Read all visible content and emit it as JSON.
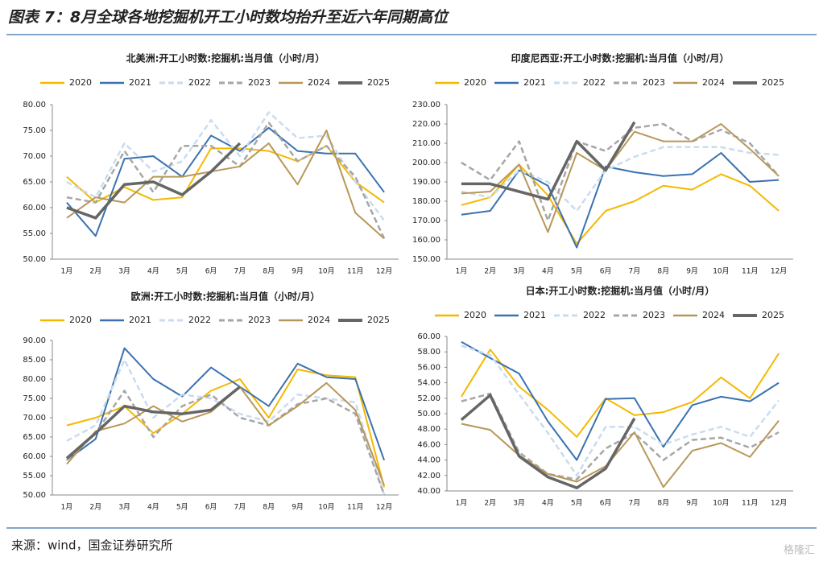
{
  "header": {
    "title": "图表 7：8月全球各地挖掘机开工小时数均抬升至近六年同期高位"
  },
  "footer": {
    "source": "来源：wind，国金证券研究所",
    "watermark": "格隆汇"
  },
  "chart_data": [
    {
      "type": "line",
      "title": "北美洲:开工小时数:挖掘机:当月值（小时/月）",
      "categories": [
        "1月",
        "2月",
        "3月",
        "4月",
        "5月",
        "6月",
        "7月",
        "8月",
        "9月",
        "10月",
        "11月",
        "12月"
      ],
      "ylim": [
        50,
        80
      ],
      "yticks": [
        {
          "value": 50,
          "label": "50.00"
        },
        {
          "value": 55,
          "label": "55.00"
        },
        {
          "value": 60,
          "label": "60.00"
        },
        {
          "value": 65,
          "label": "65.00"
        },
        {
          "value": 70,
          "label": "70.00"
        },
        {
          "value": 75,
          "label": "75.00"
        },
        {
          "value": 80,
          "label": "80.00"
        }
      ],
      "series": [
        {
          "name": "2020",
          "color": "#f5b800",
          "line_style": "solid",
          "values": [
            66,
            61,
            64,
            61.5,
            62,
            71.5,
            71.5,
            71,
            69,
            72,
            65,
            61
          ]
        },
        {
          "name": "2021",
          "color": "#3a72b0",
          "line_style": "solid",
          "values": [
            61,
            54.5,
            69.5,
            70,
            66,
            74,
            71,
            75.5,
            71,
            70.5,
            70.5,
            63
          ]
        },
        {
          "name": "2022",
          "color": "#c9dcef",
          "line_style": "dashed",
          "values": [
            65,
            62,
            72.5,
            67,
            69,
            77,
            70,
            78.5,
            73.5,
            74,
            65,
            57.5
          ]
        },
        {
          "name": "2023",
          "color": "#a6a6a6",
          "line_style": "dashed",
          "values": [
            62,
            61,
            71,
            63,
            72,
            72,
            68,
            76.5,
            69,
            72,
            66,
            54
          ]
        },
        {
          "name": "2024",
          "color": "#b8975a",
          "line_style": "solid",
          "values": [
            58,
            62,
            61,
            66,
            66,
            67,
            68,
            72.5,
            64.5,
            75,
            59,
            54
          ]
        },
        {
          "name": "2025",
          "color": "#666666",
          "line_style": "bold",
          "values": [
            60,
            58,
            64.5,
            65,
            62.5,
            67,
            72.5,
            null,
            null,
            null,
            null,
            null
          ]
        }
      ]
    },
    {
      "type": "line",
      "title": "印度尼西亚:开工小时数:挖掘机:当月值（小时/月）",
      "categories": [
        "1月",
        "2月",
        "3月",
        "4月",
        "5月",
        "6月",
        "7月",
        "8月",
        "9月",
        "10月",
        "11月",
        "12月"
      ],
      "ylim": [
        150,
        230
      ],
      "yticks": [
        {
          "value": 150,
          "label": "150.00"
        },
        {
          "value": 160,
          "label": "160.00"
        },
        {
          "value": 170,
          "label": "170.00"
        },
        {
          "value": 180,
          "label": "180.00"
        },
        {
          "value": 190,
          "label": "190.00"
        },
        {
          "value": 200,
          "label": "200.00"
        },
        {
          "value": 210,
          "label": "210.00"
        },
        {
          "value": 220,
          "label": "220.00"
        },
        {
          "value": 230,
          "label": "230.00"
        }
      ],
      "series": [
        {
          "name": "2020",
          "color": "#f5b800",
          "line_style": "solid",
          "values": [
            178,
            182,
            199,
            183,
            158,
            175,
            180,
            188,
            186,
            194,
            188,
            175
          ]
        },
        {
          "name": "2021",
          "color": "#3a72b0",
          "line_style": "solid",
          "values": [
            173,
            175,
            196,
            188,
            156,
            198,
            195,
            193,
            194,
            205,
            190,
            191
          ]
        },
        {
          "name": "2022",
          "color": "#c9dcef",
          "line_style": "dashed",
          "values": [
            185,
            182,
            196,
            190,
            175,
            196,
            203,
            208,
            208,
            208,
            205,
            204
          ]
        },
        {
          "name": "2023",
          "color": "#a6a6a6",
          "line_style": "dashed",
          "values": [
            200,
            191,
            211,
            170,
            211,
            206,
            218,
            220,
            211,
            217,
            210,
            193
          ]
        },
        {
          "name": "2024",
          "color": "#b8975a",
          "line_style": "solid",
          "values": [
            184,
            185,
            199,
            164,
            205,
            196,
            216,
            211,
            211,
            220,
            207,
            193
          ]
        },
        {
          "name": "2025",
          "color": "#666666",
          "line_style": "bold",
          "values": [
            189,
            189,
            185,
            181,
            211,
            196,
            221,
            null,
            null,
            null,
            null,
            null
          ]
        }
      ]
    },
    {
      "type": "line",
      "title": "欧洲:开工小时数:挖掘机:当月值（小时/月）",
      "categories": [
        "1月",
        "2月",
        "3月",
        "4月",
        "5月",
        "6月",
        "7月",
        "8月",
        "9月",
        "10月",
        "11月",
        "12月"
      ],
      "ylim": [
        50,
        90
      ],
      "yticks": [
        {
          "value": 50,
          "label": "50.00"
        },
        {
          "value": 55,
          "label": "55.00"
        },
        {
          "value": 60,
          "label": "60.00"
        },
        {
          "value": 65,
          "label": "65.00"
        },
        {
          "value": 70,
          "label": "70.00"
        },
        {
          "value": 75,
          "label": "75.00"
        },
        {
          "value": 80,
          "label": "80.00"
        },
        {
          "value": 85,
          "label": "85.00"
        },
        {
          "value": 90,
          "label": "90.00"
        }
      ],
      "series": [
        {
          "name": "2020",
          "color": "#f5b800",
          "line_style": "solid",
          "values": [
            68,
            70,
            73,
            66,
            71,
            77,
            80,
            70,
            82.5,
            81,
            80.5,
            52
          ]
        },
        {
          "name": "2021",
          "color": "#3a72b0",
          "line_style": "solid",
          "values": [
            59,
            64.5,
            88,
            80,
            75.5,
            83,
            78,
            73,
            84,
            80.5,
            80,
            59
          ]
        },
        {
          "name": "2022",
          "color": "#c9dcef",
          "line_style": "dashed",
          "values": [
            64,
            68,
            85,
            70,
            76,
            75,
            71,
            69,
            76,
            75,
            74,
            50
          ]
        },
        {
          "name": "2023",
          "color": "#a6a6a6",
          "line_style": "dashed",
          "values": [
            59,
            66,
            77,
            65,
            73,
            76,
            70,
            68,
            73.5,
            75,
            71,
            50
          ]
        },
        {
          "name": "2024",
          "color": "#b8975a",
          "line_style": "solid",
          "values": [
            58,
            66.5,
            68.5,
            73,
            69,
            71.5,
            78,
            68,
            73,
            79,
            72,
            52.5
          ]
        },
        {
          "name": "2025",
          "color": "#666666",
          "line_style": "bold",
          "values": [
            59.5,
            66,
            73,
            71.5,
            71,
            72,
            78,
            null,
            null,
            null,
            null,
            null
          ]
        }
      ]
    },
    {
      "type": "line",
      "title": "日本:开工小时数:挖掘机:当月值（小时/月）",
      "categories": [
        "1月",
        "2月",
        "3月",
        "4月",
        "5月",
        "6月",
        "7月",
        "8月",
        "9月",
        "10月",
        "11月",
        "12月"
      ],
      "ylim": [
        40,
        60
      ],
      "yticks": [
        {
          "value": 40,
          "label": "40.00"
        },
        {
          "value": 42,
          "label": "42.00"
        },
        {
          "value": 44,
          "label": "44.00"
        },
        {
          "value": 46,
          "label": "46.00"
        },
        {
          "value": 48,
          "label": "48.00"
        },
        {
          "value": 50,
          "label": "50.00"
        },
        {
          "value": 52,
          "label": "52.00"
        },
        {
          "value": 54,
          "label": "54.00"
        },
        {
          "value": 56,
          "label": "56.00"
        },
        {
          "value": 58,
          "label": "58.00"
        },
        {
          "value": 60,
          "label": "60.00"
        }
      ],
      "series": [
        {
          "name": "2020",
          "color": "#f5b800",
          "line_style": "solid",
          "values": [
            52.2,
            58.3,
            53.5,
            50.5,
            47,
            52,
            49.8,
            50.2,
            51.5,
            54.7,
            52,
            57.8
          ]
        },
        {
          "name": "2021",
          "color": "#3a72b0",
          "line_style": "solid",
          "values": [
            59.3,
            57.2,
            55.2,
            49,
            44,
            51.9,
            52,
            45.7,
            51.1,
            52.2,
            51.6,
            54
          ]
        },
        {
          "name": "2022",
          "color": "#c9dcef",
          "line_style": "dashed",
          "values": [
            58.8,
            57.6,
            52.5,
            47.5,
            42,
            48.3,
            48.3,
            46,
            47.3,
            48.3,
            47,
            51.7
          ]
        },
        {
          "name": "2023",
          "color": "#a6a6a6",
          "line_style": "dashed",
          "values": [
            51.6,
            52.6,
            45,
            42.2,
            41.5,
            45.5,
            47.5,
            44,
            46.6,
            46.9,
            45.6,
            47.6
          ]
        },
        {
          "name": "2024",
          "color": "#b8975a",
          "line_style": "solid",
          "values": [
            48.7,
            47.9,
            44.6,
            42.2,
            41.2,
            43.2,
            47.6,
            40.5,
            45.2,
            46.2,
            44.4,
            49.1
          ]
        },
        {
          "name": "2025",
          "color": "#666666",
          "line_style": "bold",
          "values": [
            49.2,
            52.4,
            44.5,
            41.8,
            40.4,
            42.9,
            49.4,
            null,
            null,
            null,
            null,
            null
          ]
        }
      ]
    }
  ]
}
